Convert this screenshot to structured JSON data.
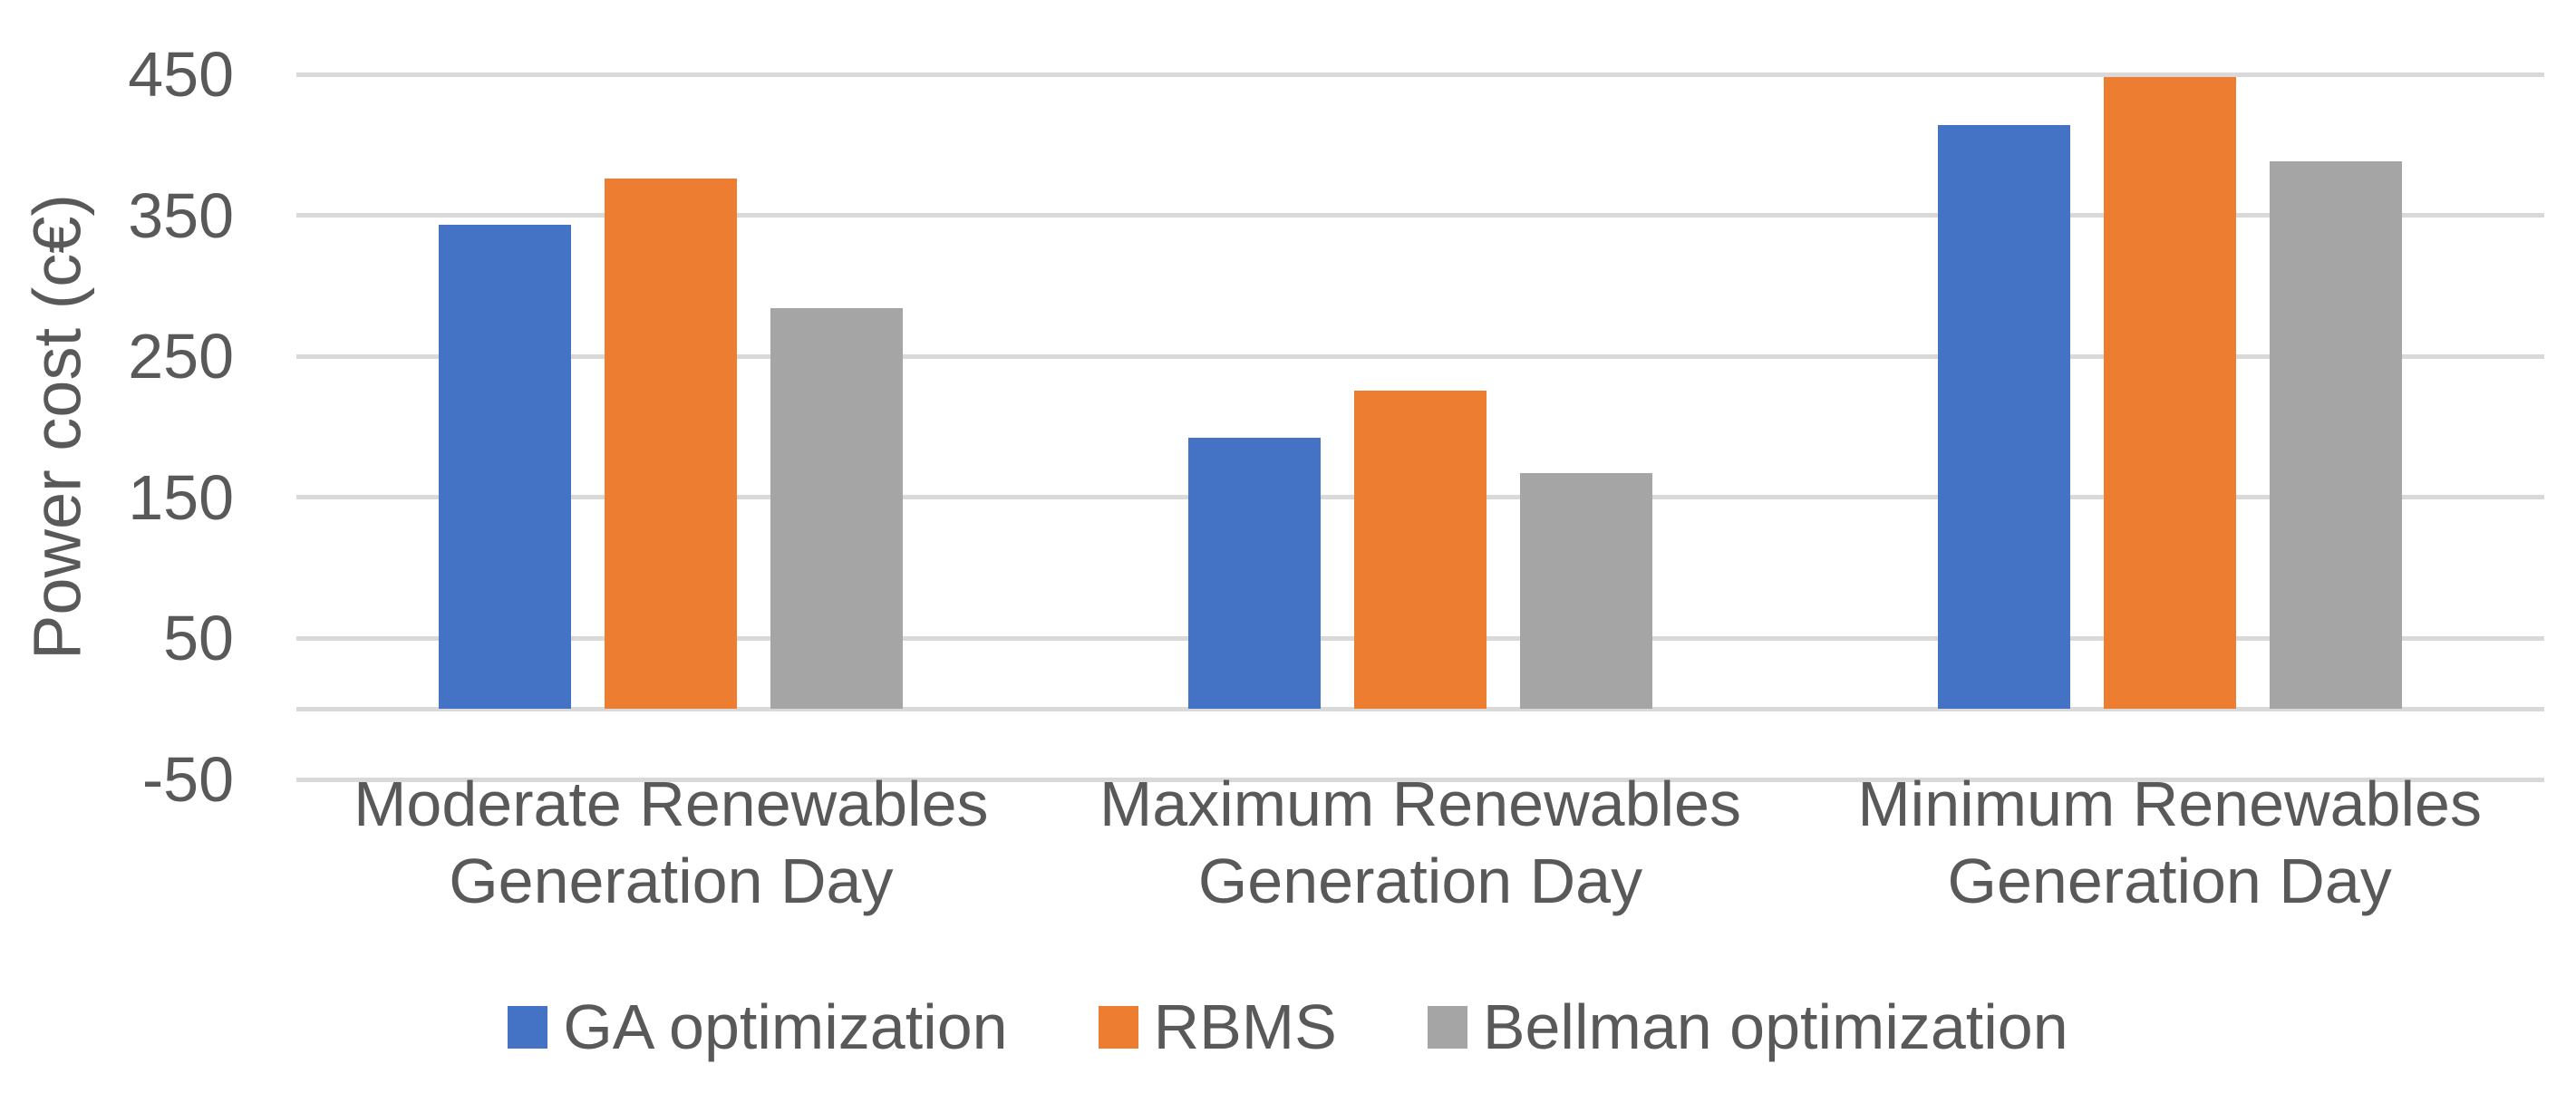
{
  "chart_data": {
    "type": "bar",
    "title": "",
    "xlabel": "",
    "ylabel": "Power cost (c€)",
    "categories": [
      "Moderate Renewables Generation Day",
      "Maximum Renewables Generation Day",
      "Minimum Renewables Generation Day"
    ],
    "category_lines": [
      [
        "Moderate Renewables",
        "Generation Day"
      ],
      [
        "Maximum Renewables",
        "Generation Day"
      ],
      [
        "Minimum Renewables",
        "Generation Day"
      ]
    ],
    "series": [
      {
        "name": "GA optimization",
        "color": "#4472C4",
        "values": [
          343,
          192,
          414
        ]
      },
      {
        "name": "RBMS",
        "color": "#ED7D31",
        "values": [
          376,
          226,
          448
        ]
      },
      {
        "name": "Bellman optimization",
        "color": "#A5A5A5",
        "values": [
          284,
          167,
          388
        ]
      }
    ],
    "ylim": [
      -50,
      450
    ],
    "yticks": [
      450,
      350,
      250,
      150,
      50,
      -50
    ],
    "grid": true,
    "legend_position": "bottom",
    "colors": {
      "gridline": "#D9D9D9",
      "axis_text": "#595959",
      "background": "#FFFFFF"
    }
  }
}
